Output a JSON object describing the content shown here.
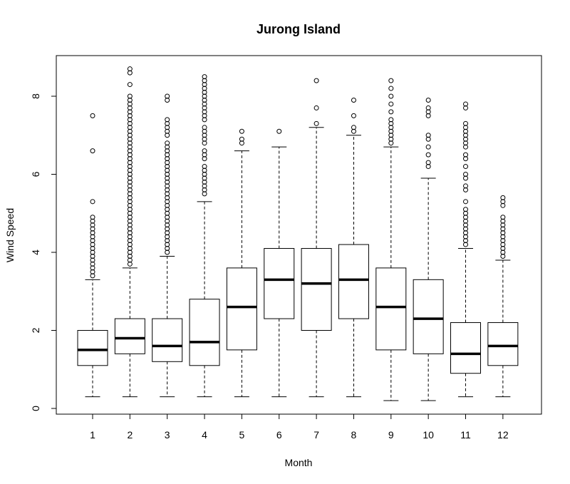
{
  "chart_data": {
    "type": "box",
    "title": "Jurong Island",
    "xlabel": "Month",
    "ylabel": "Wind Speed",
    "ylim": [
      0,
      9
    ],
    "yticks": [
      0,
      2,
      4,
      6,
      8
    ],
    "categories": [
      "1",
      "2",
      "3",
      "4",
      "5",
      "6",
      "7",
      "8",
      "9",
      "10",
      "11",
      "12"
    ],
    "boxes": [
      {
        "min": 0.3,
        "q1": 1.1,
        "median": 1.5,
        "q3": 2.0,
        "max": 3.3,
        "outliers": [
          3.4,
          3.5,
          3.6,
          3.7,
          3.8,
          3.9,
          4.0,
          4.1,
          4.2,
          4.3,
          4.4,
          4.5,
          4.6,
          4.7,
          4.8,
          4.9,
          5.3,
          6.6,
          7.5
        ]
      },
      {
        "min": 0.3,
        "q1": 1.4,
        "median": 1.8,
        "q3": 2.3,
        "max": 3.6,
        "outliers": [
          3.7,
          3.8,
          3.9,
          4.0,
          4.1,
          4.2,
          4.3,
          4.4,
          4.5,
          4.6,
          4.7,
          4.8,
          4.9,
          5.0,
          5.1,
          5.2,
          5.3,
          5.4,
          5.5,
          5.6,
          5.7,
          5.8,
          5.9,
          6.0,
          6.1,
          6.2,
          6.3,
          6.4,
          6.5,
          6.6,
          6.7,
          6.8,
          6.9,
          7.0,
          7.1,
          7.2,
          7.3,
          7.4,
          7.5,
          7.6,
          7.7,
          7.8,
          7.9,
          8.0,
          8.3,
          8.6,
          8.7
        ]
      },
      {
        "min": 0.3,
        "q1": 1.2,
        "median": 1.6,
        "q3": 2.3,
        "max": 3.9,
        "outliers": [
          4.0,
          4.1,
          4.2,
          4.3,
          4.4,
          4.5,
          4.6,
          4.7,
          4.8,
          4.9,
          5.0,
          5.1,
          5.2,
          5.3,
          5.4,
          5.5,
          5.6,
          5.7,
          5.8,
          5.9,
          6.0,
          6.1,
          6.2,
          6.3,
          6.4,
          6.5,
          6.6,
          6.7,
          6.8,
          7.0,
          7.1,
          7.2,
          7.3,
          7.4,
          7.9,
          8.0
        ]
      },
      {
        "min": 0.3,
        "q1": 1.1,
        "median": 1.7,
        "q3": 2.8,
        "max": 5.3,
        "outliers": [
          5.5,
          5.6,
          5.7,
          5.8,
          5.9,
          6.0,
          6.1,
          6.2,
          6.4,
          6.5,
          6.6,
          6.8,
          6.9,
          7.0,
          7.1,
          7.2,
          7.4,
          7.5,
          7.6,
          7.7,
          7.8,
          7.9,
          8.0,
          8.1,
          8.2,
          8.3,
          8.4,
          8.5
        ]
      },
      {
        "min": 0.3,
        "q1": 1.5,
        "median": 2.6,
        "q3": 3.6,
        "max": 6.6,
        "outliers": [
          6.8,
          6.9,
          7.1
        ]
      },
      {
        "min": 0.3,
        "q1": 2.3,
        "median": 3.3,
        "q3": 4.1,
        "max": 6.7,
        "outliers": [
          7.1
        ]
      },
      {
        "min": 0.3,
        "q1": 2.0,
        "median": 3.2,
        "q3": 4.1,
        "max": 7.2,
        "outliers": [
          7.3,
          7.7,
          8.4
        ]
      },
      {
        "min": 0.3,
        "q1": 2.3,
        "median": 3.3,
        "q3": 4.2,
        "max": 7.0,
        "outliers": [
          7.1,
          7.2,
          7.5,
          7.9
        ]
      },
      {
        "min": 0.2,
        "q1": 1.5,
        "median": 2.6,
        "q3": 3.6,
        "max": 6.7,
        "outliers": [
          6.8,
          6.9,
          7.0,
          7.1,
          7.2,
          7.3,
          7.4,
          7.6,
          7.8,
          8.0,
          8.2,
          8.4
        ]
      },
      {
        "min": 0.2,
        "q1": 1.4,
        "median": 2.3,
        "q3": 3.3,
        "max": 5.9,
        "outliers": [
          6.2,
          6.3,
          6.5,
          6.7,
          6.9,
          7.0,
          7.5,
          7.6,
          7.7,
          7.9
        ]
      },
      {
        "min": 0.3,
        "q1": 0.9,
        "median": 1.4,
        "q3": 2.2,
        "max": 4.1,
        "outliers": [
          4.2,
          4.3,
          4.4,
          4.5,
          4.6,
          4.7,
          4.8,
          4.9,
          5.0,
          5.1,
          5.3,
          5.6,
          5.7,
          5.9,
          6.0,
          6.2,
          6.4,
          6.5,
          6.7,
          6.8,
          6.9,
          7.0,
          7.1,
          7.2,
          7.3,
          7.7,
          7.8
        ]
      },
      {
        "min": 0.3,
        "q1": 1.1,
        "median": 1.6,
        "q3": 2.2,
        "max": 3.8,
        "outliers": [
          3.9,
          4.0,
          4.1,
          4.2,
          4.3,
          4.4,
          4.5,
          4.6,
          4.7,
          4.8,
          4.9,
          5.2,
          5.3,
          5.4
        ]
      }
    ],
    "grid": false,
    "legend": "none"
  }
}
